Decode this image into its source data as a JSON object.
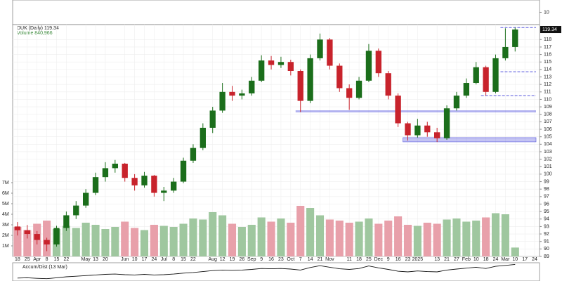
{
  "chart_data": {
    "type": "candlestick",
    "title": "DUK (Daily) 119.34",
    "categories": [
      "18",
      "25",
      "Apr",
      "8",
      "15",
      "22",
      null,
      "May",
      "13",
      "20",
      null,
      "Jun",
      "10",
      "17",
      "24",
      "Jul",
      "8",
      "15",
      "22",
      null,
      "Aug",
      "12",
      "19",
      "26",
      "Sep",
      "9",
      "16",
      "23",
      "Oct",
      "7",
      "14",
      "21",
      "Nov",
      null,
      "11",
      "18",
      "25",
      "Dec",
      "9",
      "16",
      "23",
      "2025",
      null,
      "13",
      "21",
      "27",
      "Feb",
      "10",
      "18",
      "24",
      "Mar",
      "10",
      "17",
      "24"
    ],
    "open": [
      93.0,
      92.5,
      92.0,
      91.2,
      90.6,
      92.8,
      94.5,
      95.8,
      97.5,
      99.6,
      100.8,
      101.4,
      99.5,
      98.5,
      99.8,
      97.5,
      97.8,
      99.0,
      101.8,
      103.5,
      106.2,
      108.5,
      111.0,
      110.5,
      110.8,
      112.5,
      115.2,
      114.6,
      115.0,
      113.8,
      109.8,
      115.5,
      118.0,
      114.5,
      111.5,
      110.2,
      112.5,
      116.5,
      113.5,
      110.5,
      106.8,
      105.2,
      106.5,
      105.6,
      104.8,
      108.8,
      110.5,
      112.2,
      114.3,
      111.0,
      115.5,
      117.0,
      null,
      null
    ],
    "high": [
      93.6,
      93.2,
      92.4,
      91.5,
      93.1,
      95.0,
      96.4,
      98.0,
      100.2,
      101.6,
      101.9,
      101.5,
      100.0,
      100.3,
      99.9,
      98.3,
      99.5,
      102.2,
      104.0,
      106.8,
      109.0,
      112.2,
      111.8,
      111.3,
      113.0,
      115.9,
      115.8,
      115.7,
      115.3,
      114.0,
      116.0,
      118.8,
      118.2,
      114.8,
      112.0,
      113.0,
      117.4,
      116.8,
      113.8,
      110.8,
      107.0,
      107.4,
      107.0,
      106.2,
      109.2,
      111.0,
      112.8,
      115.0,
      114.5,
      116.0,
      119.5,
      119.6,
      null,
      null
    ],
    "low": [
      91.8,
      91.4,
      90.6,
      89.7,
      90.3,
      92.4,
      94.0,
      95.5,
      97.2,
      99.0,
      100.2,
      99.0,
      97.8,
      98.2,
      97.0,
      96.4,
      97.5,
      98.8,
      101.5,
      103.2,
      105.5,
      108.2,
      109.8,
      110.0,
      110.5,
      112.3,
      114.0,
      114.2,
      113.2,
      108.3,
      109.5,
      115.2,
      114.0,
      111.0,
      108.6,
      110.0,
      112.3,
      113.0,
      110.0,
      106.3,
      104.5,
      104.9,
      105.0,
      104.3,
      104.6,
      108.5,
      110.2,
      112.0,
      110.5,
      110.8,
      115.2,
      116.4,
      null,
      null
    ],
    "close": [
      92.5,
      92.0,
      91.2,
      90.6,
      92.8,
      94.5,
      95.8,
      97.5,
      99.6,
      100.8,
      101.4,
      99.5,
      98.5,
      99.8,
      97.5,
      97.8,
      99.0,
      101.8,
      103.5,
      106.2,
      108.5,
      111.0,
      110.5,
      110.8,
      112.5,
      115.2,
      114.6,
      115.0,
      113.8,
      109.8,
      115.5,
      118.0,
      114.5,
      111.5,
      110.2,
      112.5,
      116.5,
      113.5,
      110.5,
      106.8,
      105.2,
      106.5,
      105.6,
      104.8,
      108.8,
      110.5,
      112.2,
      114.3,
      111.0,
      115.5,
      117.0,
      119.34,
      null,
      null
    ],
    "up_color": "#1b6e1b",
    "down_color": "#c8232c",
    "ylim": [
      89,
      120
    ],
    "yticks": [
      89,
      90,
      91,
      92,
      93,
      94,
      95,
      96,
      97,
      98,
      99,
      100,
      101,
      102,
      103,
      104,
      105,
      106,
      107,
      108,
      109,
      110,
      111,
      112,
      113,
      114,
      115,
      116,
      117,
      118
    ],
    "grid": true,
    "levels": [
      {
        "value": 108.4,
        "start": 29,
        "style": "solid"
      },
      {
        "value": 104.6,
        "start": 40,
        "style": "band"
      },
      {
        "value": 119.6,
        "start": 50,
        "style": "dashed"
      },
      {
        "value": 113.7,
        "start": 50,
        "style": "dashed"
      },
      {
        "value": 110.5,
        "start": 48,
        "style": "dashed"
      }
    ],
    "level_color": "#5555dd",
    "volume": {
      "label": "Volume 840,966",
      "values": [
        2800000,
        2500000,
        3100000,
        3400000,
        2600000,
        2900000,
        2700000,
        3200000,
        3000000,
        2600000,
        2800000,
        3300000,
        2700000,
        2500000,
        3000000,
        2900000,
        2800000,
        3100000,
        3600000,
        3500000,
        4200000,
        3900000,
        3100000,
        2800000,
        3000000,
        3700000,
        3300000,
        3600000,
        3200000,
        4800000,
        4600000,
        3900000,
        3500000,
        3400000,
        3200000,
        3300000,
        3600000,
        3100000,
        3400000,
        3800000,
        3000000,
        2900000,
        3200000,
        3100000,
        3500000,
        3600000,
        3300000,
        3400000,
        3700000,
        4100000,
        4000000,
        840966,
        null,
        null
      ],
      "ylim": [
        0,
        22000000
      ],
      "yticks": [
        {
          "value": 1000000,
          "label": "1M"
        },
        {
          "value": 2000000,
          "label": "2M"
        },
        {
          "value": 3000000,
          "label": "3M"
        },
        {
          "value": 4000000,
          "label": "4M"
        },
        {
          "value": 5000000,
          "label": "5M"
        },
        {
          "value": 6000000,
          "label": "6M"
        },
        {
          "value": 7000000,
          "label": "7M"
        }
      ],
      "up_color": "#9fc79f",
      "down_color": "#e8a0aa"
    },
    "accum_dist": {
      "title": "Accum/Dist (13 Mar)",
      "values": [
        10,
        12,
        8,
        6,
        12,
        18,
        22,
        26,
        30,
        34,
        36,
        32,
        30,
        34,
        30,
        32,
        36,
        42,
        46,
        52,
        58,
        62,
        60,
        62,
        66,
        72,
        70,
        72,
        68,
        62,
        78,
        90,
        80,
        70,
        66,
        72,
        88,
        76,
        66,
        54,
        50,
        56,
        52,
        50,
        62,
        68,
        74,
        80,
        72,
        86,
        92,
        98,
        null,
        null
      ],
      "ylim": [
        0,
        100
      ],
      "color": "#111"
    },
    "top_panel": {
      "ylim": [
        0,
        20
      ],
      "yticks": [
        10
      ]
    }
  }
}
